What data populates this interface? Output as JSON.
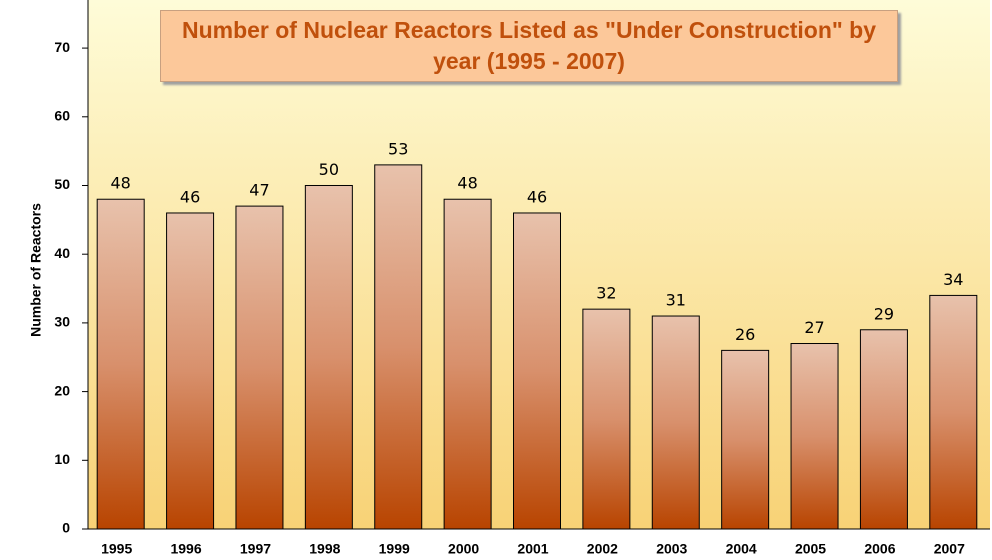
{
  "chart_data": {
    "type": "bar",
    "title": "Number of Nuclear Reactors Listed as \"Under Construction\" by year (1995 - 2007)",
    "y_label": "Number of Reactors",
    "categories": [
      "1995",
      "1996",
      "1997",
      "1998",
      "1999",
      "2000",
      "2001",
      "2002",
      "2003",
      "2004",
      "2005",
      "2006",
      "2007"
    ],
    "values": [
      48,
      46,
      47,
      50,
      53,
      48,
      46,
      32,
      31,
      26,
      27,
      29,
      34
    ],
    "ylim": [
      0,
      77
    ],
    "yticks": [
      0,
      10,
      20,
      30,
      40,
      50,
      60,
      70
    ],
    "grid": false
  }
}
